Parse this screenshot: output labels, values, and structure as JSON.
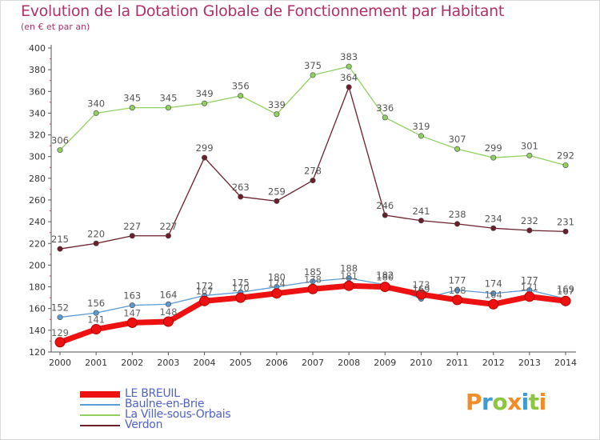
{
  "header": {
    "title": "Evolution de la Dotation Globale de Fonctionnement par Habitant",
    "subtitle": "(en € et par an)"
  },
  "logo": {
    "text": "Proxiti",
    "colors": [
      "#f28c28",
      "#3f9ad6",
      "#8cc63f",
      "#f28c28",
      "#3f9ad6",
      "#8cc63f",
      "#f28c28"
    ]
  },
  "chart_data": {
    "type": "line",
    "x": [
      2000,
      2001,
      2002,
      2003,
      2004,
      2005,
      2006,
      2007,
      2008,
      2009,
      2010,
      2011,
      2012,
      2013,
      2014
    ],
    "ylim": [
      120,
      400
    ],
    "yticks": [
      120,
      140,
      160,
      180,
      200,
      220,
      240,
      260,
      280,
      300,
      320,
      340,
      360,
      380,
      400
    ],
    "grid": false,
    "legend_position": "bottom-left",
    "series": [
      {
        "name": "LE BREUIL",
        "color": "#ee1111",
        "values": [
          129,
          141,
          147,
          148,
          167,
          170,
          174,
          178,
          181,
          180,
          173,
          168,
          164,
          171,
          167
        ]
      },
      {
        "name": "Baulne-en-Brie",
        "color": "#5b9bd5",
        "values": [
          152,
          156,
          163,
          164,
          172,
          175,
          180,
          185,
          188,
          182,
          169,
          177,
          174,
          177,
          169
        ]
      },
      {
        "name": "La Ville-sous-Orbais",
        "color": "#90d060",
        "values": [
          306,
          340,
          345,
          345,
          349,
          356,
          339,
          375,
          383,
          336,
          319,
          307,
          299,
          301,
          292
        ]
      },
      {
        "name": "Verdon",
        "color": "#6b1f2a",
        "values": [
          215,
          220,
          227,
          227,
          299,
          263,
          259,
          278,
          364,
          246,
          241,
          238,
          234,
          232,
          231
        ]
      }
    ]
  }
}
